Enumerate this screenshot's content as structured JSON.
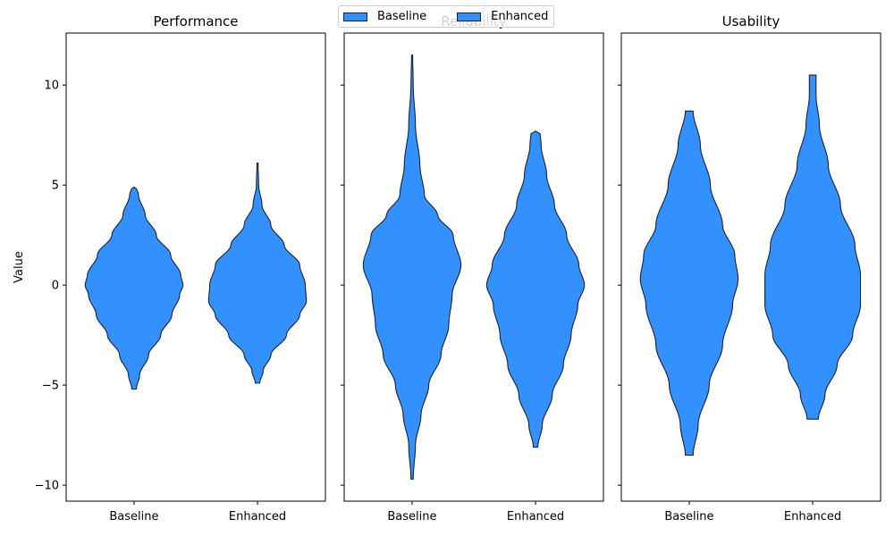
{
  "chart_data": {
    "type": "violin",
    "ylabel": "Value",
    "ylim": [
      -10.8,
      12.6
    ],
    "yticks": [
      -10,
      -5,
      0,
      5,
      10
    ],
    "categories": [
      "Baseline",
      "Enhanced"
    ],
    "legend": {
      "placement": "top-center",
      "entries": [
        {
          "name": "Baseline",
          "color": "#3391ff"
        },
        {
          "name": "Enhanced",
          "color": "#3391ff"
        }
      ]
    },
    "style": {
      "fill": "#3391ff",
      "edge": "#1a2330"
    },
    "panels": [
      {
        "title": "Performance",
        "violins": [
          {
            "category": "Baseline",
            "min": -5.2,
            "max": 4.9,
            "profile": [
              [
                -5.2,
                0.02
              ],
              [
                -4.5,
                0.05
              ],
              [
                -3.5,
                0.13
              ],
              [
                -2.5,
                0.24
              ],
              [
                -1.5,
                0.34
              ],
              [
                -0.5,
                0.41
              ],
              [
                0,
                0.44
              ],
              [
                0.5,
                0.42
              ],
              [
                1.5,
                0.33
              ],
              [
                2.5,
                0.2
              ],
              [
                3.5,
                0.1
              ],
              [
                4.5,
                0.04
              ],
              [
                4.9,
                0.02
              ]
            ]
          },
          {
            "category": "Enhanced",
            "min": -4.9,
            "max": 6.1,
            "profile": [
              [
                -4.9,
                0.02
              ],
              [
                -4.3,
                0.05
              ],
              [
                -3.5,
                0.12
              ],
              [
                -2.5,
                0.26
              ],
              [
                -1.5,
                0.38
              ],
              [
                -0.8,
                0.44
              ],
              [
                0,
                0.43
              ],
              [
                1,
                0.38
              ],
              [
                2,
                0.24
              ],
              [
                3,
                0.12
              ],
              [
                4,
                0.04
              ],
              [
                5,
                0.01
              ],
              [
                6.1,
                0.005
              ]
            ]
          }
        ]
      },
      {
        "title": "Reliability",
        "violins": [
          {
            "category": "Baseline",
            "min": -9.7,
            "max": 11.5,
            "profile": [
              [
                -9.7,
                0.01
              ],
              [
                -8,
                0.03
              ],
              [
                -6.5,
                0.08
              ],
              [
                -5,
                0.15
              ],
              [
                -3.5,
                0.26
              ],
              [
                -2,
                0.33
              ],
              [
                -0.5,
                0.36
              ],
              [
                1,
                0.44
              ],
              [
                2.5,
                0.37
              ],
              [
                3.5,
                0.23
              ],
              [
                4.5,
                0.11
              ],
              [
                6,
                0.07
              ],
              [
                8,
                0.03
              ],
              [
                10,
                0.01
              ],
              [
                11.5,
                0.005
              ]
            ]
          },
          {
            "category": "Enhanced",
            "min": -8.1,
            "max": 7.7,
            "profile": [
              [
                -8.1,
                0.02
              ],
              [
                -7,
                0.06
              ],
              [
                -5.5,
                0.15
              ],
              [
                -4,
                0.25
              ],
              [
                -2.5,
                0.32
              ],
              [
                -1,
                0.38
              ],
              [
                0,
                0.44
              ],
              [
                1,
                0.39
              ],
              [
                2.5,
                0.28
              ],
              [
                4,
                0.17
              ],
              [
                5.5,
                0.1
              ],
              [
                7,
                0.05
              ],
              [
                7.7,
                0.04
              ]
            ]
          }
        ]
      },
      {
        "title": "Usability",
        "violins": [
          {
            "category": "Baseline",
            "min": -8.5,
            "max": 8.7,
            "profile": [
              [
                -8.5,
                0.035
              ],
              [
                -7,
                0.08
              ],
              [
                -5,
                0.18
              ],
              [
                -3,
                0.3
              ],
              [
                -1,
                0.39
              ],
              [
                0.3,
                0.44
              ],
              [
                1.5,
                0.41
              ],
              [
                3,
                0.3
              ],
              [
                5,
                0.19
              ],
              [
                7,
                0.1
              ],
              [
                8.7,
                0.035
              ]
            ]
          },
          {
            "category": "Enhanced",
            "min": -6.7,
            "max": 10.5,
            "profile": [
              [
                -6.7,
                0.05
              ],
              [
                -5.5,
                0.11
              ],
              [
                -4,
                0.22
              ],
              [
                -2.5,
                0.36
              ],
              [
                -1,
                0.43
              ],
              [
                0.5,
                0.43
              ],
              [
                2,
                0.38
              ],
              [
                4,
                0.25
              ],
              [
                6,
                0.14
              ],
              [
                8,
                0.06
              ],
              [
                9.5,
                0.03
              ],
              [
                10.5,
                0.03
              ]
            ]
          }
        ]
      }
    ]
  }
}
